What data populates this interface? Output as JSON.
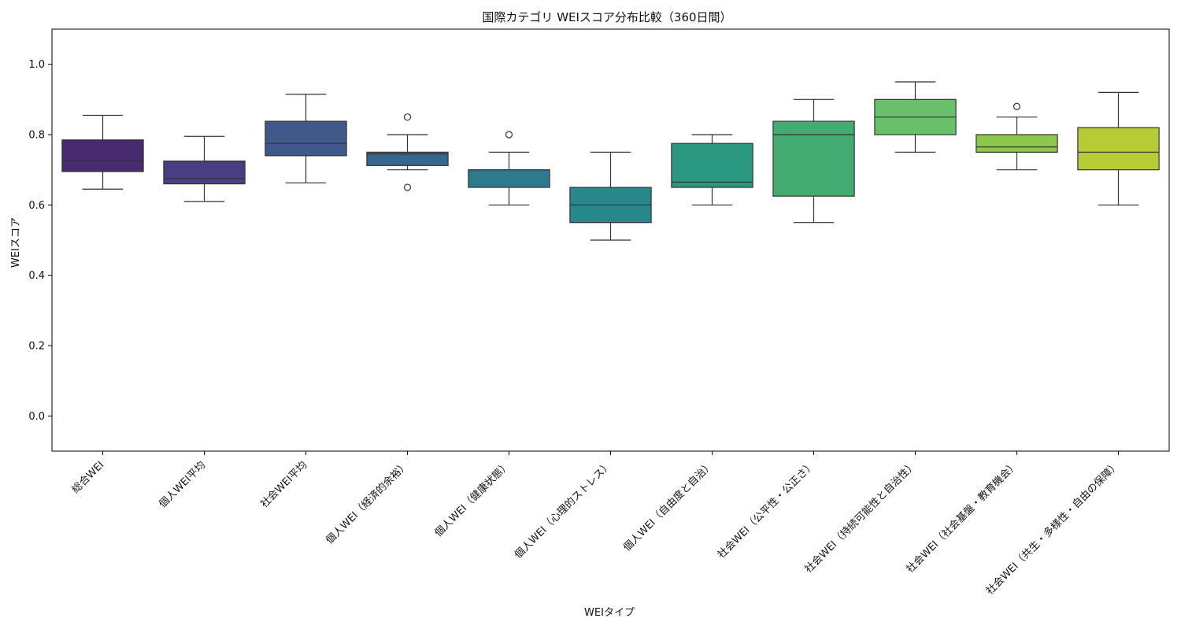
{
  "chart_data": {
    "type": "box",
    "title": "国際カテゴリ WEIスコア分布比較（360日間）",
    "xlabel": "WEIタイプ",
    "ylabel": "WEIスコア",
    "ylim": [
      -0.1,
      1.1
    ],
    "yticks": [
      0.0,
      0.2,
      0.4,
      0.6,
      0.8,
      1.0
    ],
    "ytick_labels": [
      "0.0",
      "0.2",
      "0.4",
      "0.6",
      "0.8",
      "1.0"
    ],
    "grid": false,
    "categories": [
      "総合WEI",
      "個人WEI平均",
      "社会WEI平均",
      "個人WEI（経済的余裕）",
      "個人WEI（健康状態）",
      "個人WEI（心理的ストレス）",
      "個人WEI（自由度と自治）",
      "社会WEI（公平性・公正さ）",
      "社会WEI（持続可能性と自治性）",
      "社会WEI（社会基盤・教育機会）",
      "社会WEI（共生・多様性・自由の保障）"
    ],
    "boxes": [
      {
        "whisker_low": 0.645,
        "q1": 0.695,
        "median": 0.725,
        "q3": 0.785,
        "whisker_high": 0.855,
        "outliers": []
      },
      {
        "whisker_low": 0.61,
        "q1": 0.66,
        "median": 0.675,
        "q3": 0.725,
        "whisker_high": 0.795,
        "outliers": []
      },
      {
        "whisker_low": 0.663,
        "q1": 0.74,
        "median": 0.775,
        "q3": 0.838,
        "whisker_high": 0.915,
        "outliers": []
      },
      {
        "whisker_low": 0.7,
        "q1": 0.712,
        "median": 0.745,
        "q3": 0.75,
        "whisker_high": 0.8,
        "outliers": [
          0.85,
          0.65
        ]
      },
      {
        "whisker_low": 0.6,
        "q1": 0.65,
        "median": 0.7,
        "q3": 0.7,
        "whisker_high": 0.75,
        "outliers": [
          0.8
        ]
      },
      {
        "whisker_low": 0.5,
        "q1": 0.55,
        "median": 0.6,
        "q3": 0.65,
        "whisker_high": 0.75,
        "outliers": []
      },
      {
        "whisker_low": 0.6,
        "q1": 0.65,
        "median": 0.665,
        "q3": 0.775,
        "whisker_high": 0.8,
        "outliers": []
      },
      {
        "whisker_low": 0.55,
        "q1": 0.625,
        "median": 0.8,
        "q3": 0.838,
        "whisker_high": 0.9,
        "outliers": []
      },
      {
        "whisker_low": 0.75,
        "q1": 0.8,
        "median": 0.85,
        "q3": 0.9,
        "whisker_high": 0.95,
        "outliers": []
      },
      {
        "whisker_low": 0.7,
        "q1": 0.75,
        "median": 0.765,
        "q3": 0.8,
        "whisker_high": 0.85,
        "outliers": [
          0.88
        ]
      },
      {
        "whisker_low": 0.6,
        "q1": 0.7,
        "median": 0.75,
        "q3": 0.82,
        "whisker_high": 0.92,
        "outliers": []
      }
    ],
    "colors": [
      "#472b6e",
      "#473f7f",
      "#3f5a8a",
      "#35688c",
      "#2d7a8c",
      "#26888b",
      "#2a9880",
      "#43ab71",
      "#69c06a",
      "#8cc84b",
      "#b7cb36"
    ]
  }
}
